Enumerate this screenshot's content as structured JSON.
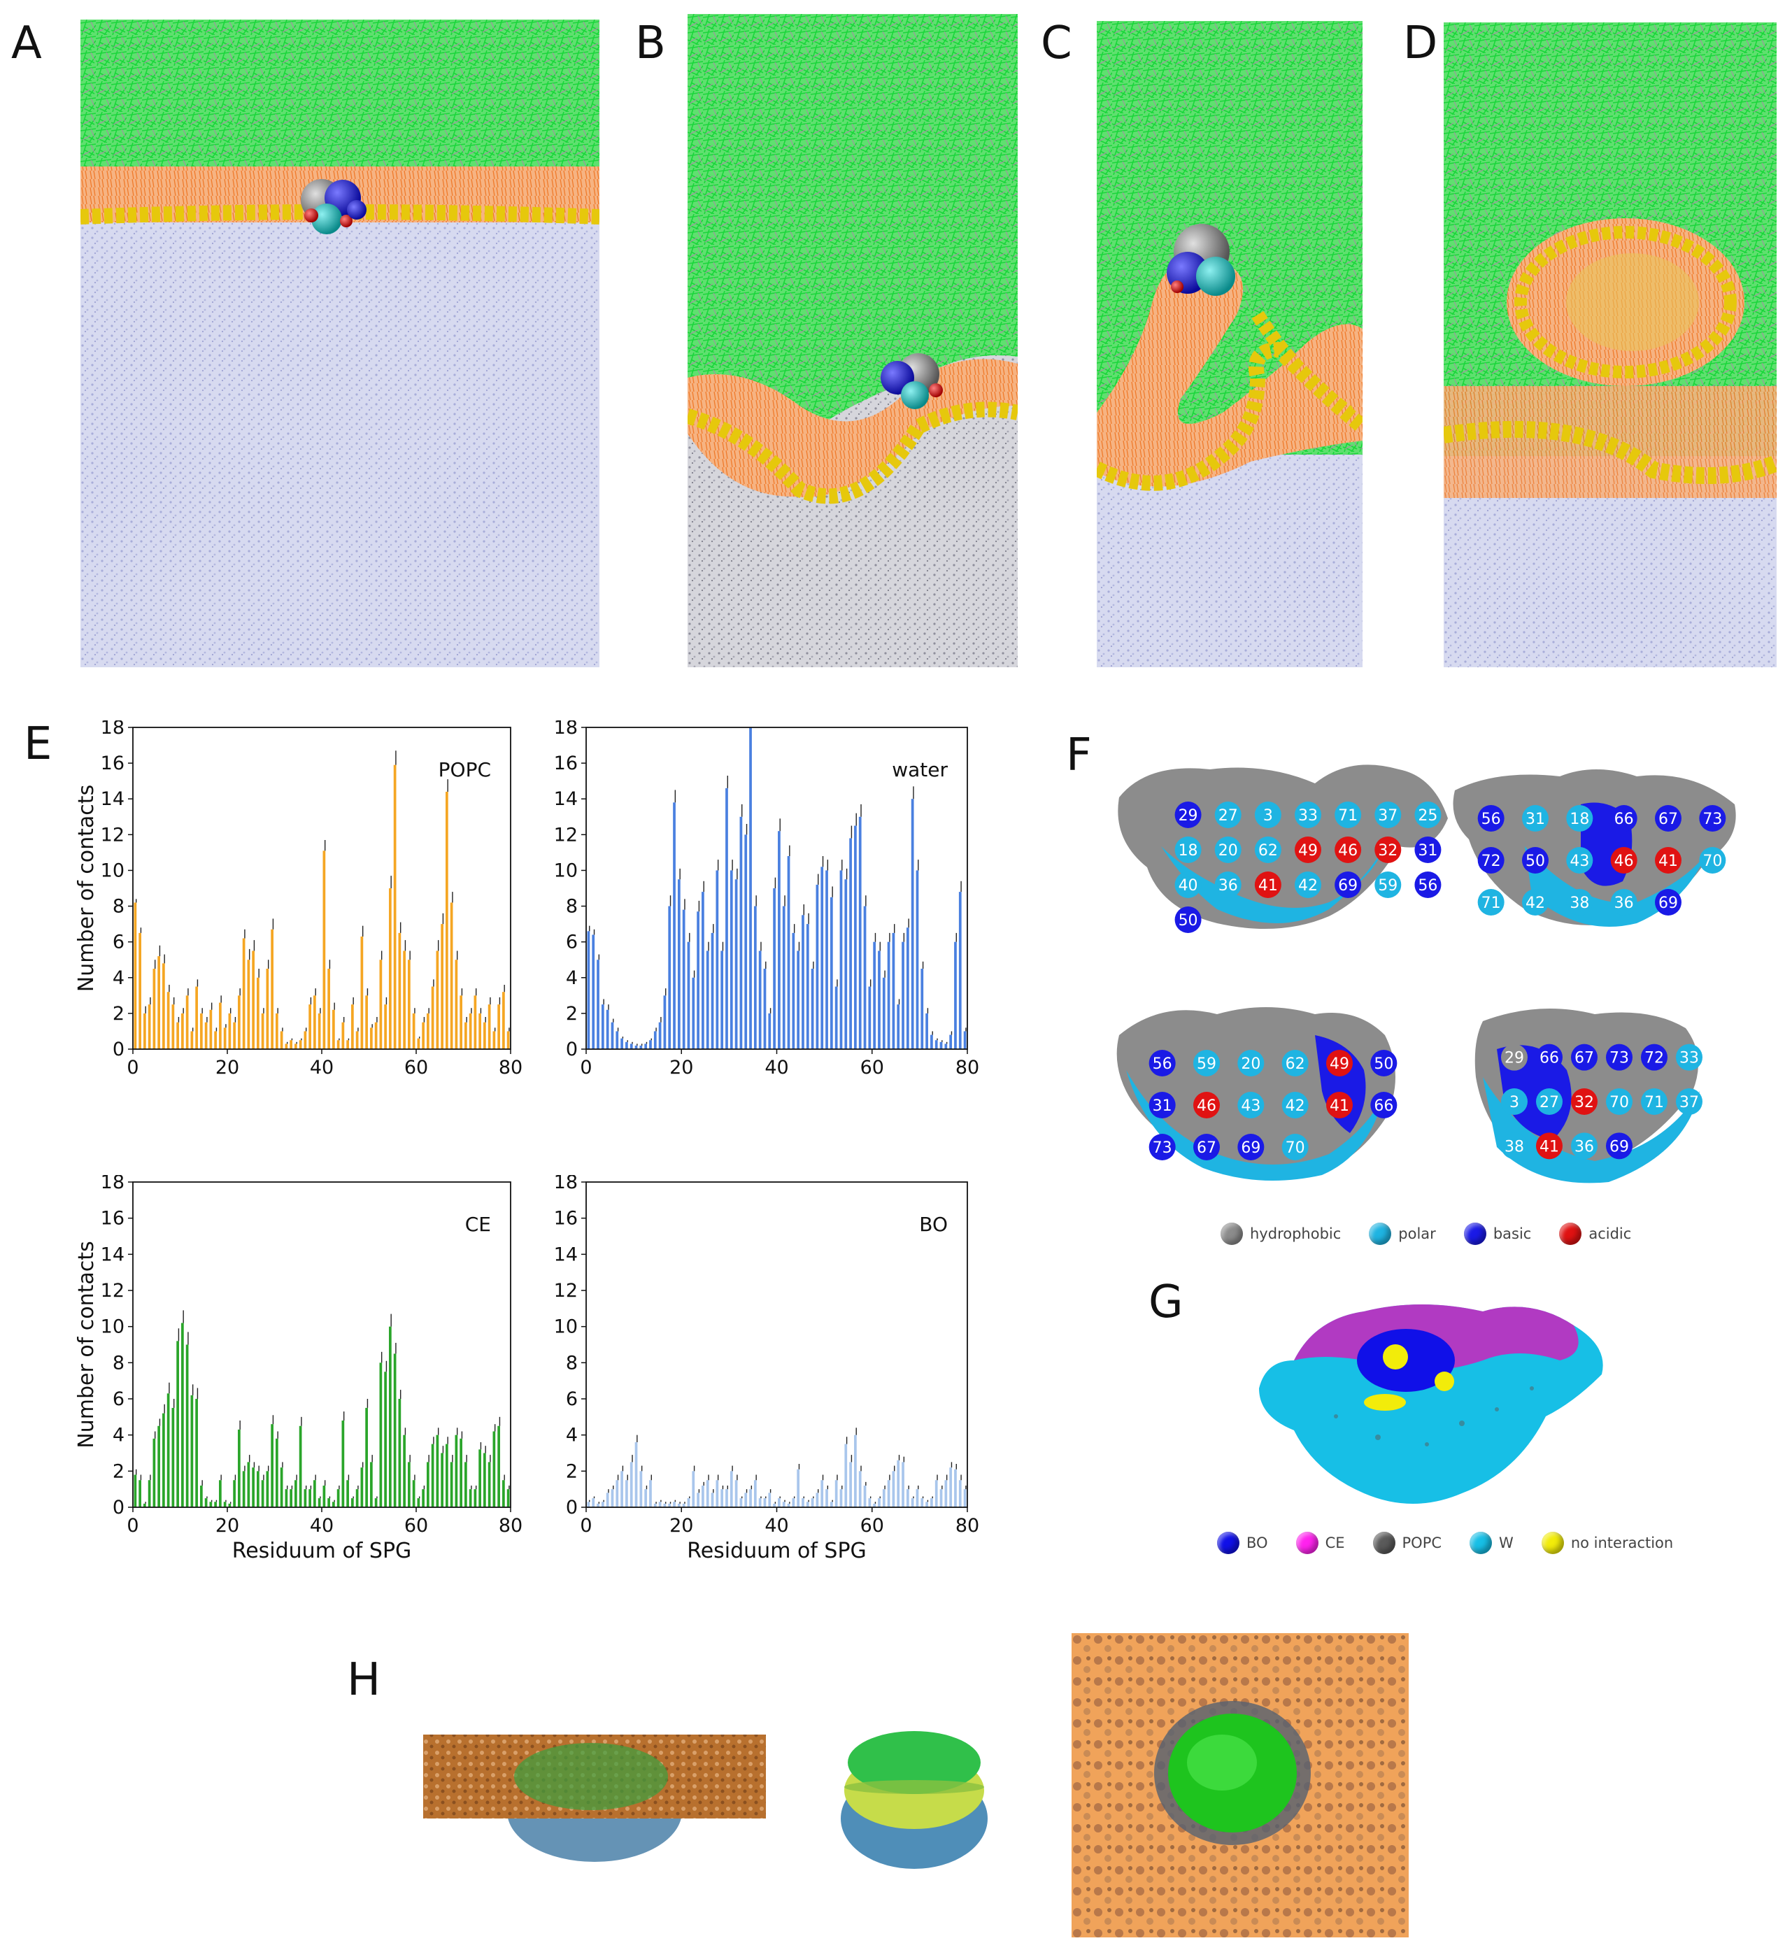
{
  "panels": {
    "A": "A",
    "B": "B",
    "C": "C",
    "D": "D",
    "E": "E",
    "F": "F",
    "G": "G",
    "H": "H"
  },
  "colors": {
    "lipid_green": "#22dd44",
    "popc_orange": "#f59a4e",
    "headgroup_yellow": "#f0d814",
    "water_lavender": "#c9cde9",
    "popc_bar": "#f5a623",
    "water_bar": "#4a80e0",
    "ce_bar": "#2aa52a",
    "bo_bar": "#a9c6ec",
    "hydrophobic": "#8c8c8c",
    "polar": "#1fb4e2",
    "basic": "#1a1ae6",
    "acidic": "#e01212",
    "BO": "#1010e8",
    "CE": "#ff22ee",
    "POPC": "#5a5a5a",
    "W": "#17bfe6",
    "no_interaction": "#f2ec0a"
  },
  "chart_data": [
    {
      "type": "bar",
      "title": "POPC",
      "xlabel": "",
      "ylabel": "Number of contacts",
      "xlim": [
        0,
        80
      ],
      "ylim": [
        0,
        18
      ],
      "xticks": [
        "0",
        "20",
        "40",
        "60",
        "80"
      ],
      "yticks": [
        "0",
        "2",
        "4",
        "6",
        "8",
        "10",
        "12",
        "14",
        "16",
        "18"
      ],
      "values": [
        8.2,
        6.5,
        2.0,
        2.5,
        4.5,
        5.2,
        4.8,
        3.2,
        2.5,
        1.5,
        2.0,
        3.0,
        1.0,
        3.5,
        2.0,
        1.5,
        2.2,
        1.0,
        2.6,
        1.2,
        2.0,
        1.5,
        3.0,
        6.2,
        5.0,
        5.5,
        4.0,
        2.0,
        4.5,
        6.7,
        2.0,
        1.0,
        0.3,
        0.5,
        0.3,
        0.5,
        1.0,
        2.5,
        3.0,
        2.0,
        11.1,
        4.5,
        2.2,
        0.5,
        1.5,
        0.5,
        2.5,
        1.0,
        6.3,
        3.0,
        1.2,
        1.5,
        5.0,
        2.5,
        9.0,
        15.9,
        6.5,
        5.5,
        5.0,
        2.0,
        0.6,
        1.5,
        2.0,
        3.5,
        5.5,
        7.0,
        14.4,
        8.2,
        5.0,
        3.0,
        1.5,
        2.0,
        3.0,
        2.0,
        1.5,
        2.5,
        1.0,
        2.5,
        3.2,
        1.0
      ],
      "errors": [
        0.2,
        0.3,
        0.4,
        0.4,
        0.5,
        0.6,
        0.5,
        0.4,
        0.4,
        0.3,
        0.3,
        0.4,
        0.2,
        0.4,
        0.3,
        0.3,
        0.4,
        0.2,
        0.4,
        0.2,
        0.3,
        0.3,
        0.4,
        0.5,
        0.6,
        0.6,
        0.5,
        0.3,
        0.5,
        0.6,
        0.3,
        0.2,
        0.1,
        0.1,
        0.1,
        0.1,
        0.2,
        0.4,
        0.4,
        0.3,
        0.6,
        0.5,
        0.4,
        0.1,
        0.3,
        0.1,
        0.4,
        0.2,
        0.6,
        0.4,
        0.2,
        0.3,
        0.5,
        0.4,
        0.7,
        0.8,
        0.6,
        0.6,
        0.5,
        0.3,
        0.1,
        0.3,
        0.3,
        0.4,
        0.6,
        0.6,
        0.7,
        0.6,
        0.5,
        0.4,
        0.3,
        0.3,
        0.4,
        0.3,
        0.3,
        0.4,
        0.2,
        0.4,
        0.4,
        0.2
      ]
    },
    {
      "type": "bar",
      "title": "water",
      "xlabel": "",
      "ylabel": "",
      "xlim": [
        0,
        80
      ],
      "ylim": [
        0,
        18
      ],
      "xticks": [
        "0",
        "20",
        "40",
        "60",
        "80"
      ],
      "yticks": [
        "0",
        "2",
        "4",
        "6",
        "8",
        "10",
        "12",
        "14",
        "16",
        "18"
      ],
      "values": [
        6.6,
        6.4,
        5.0,
        2.5,
        2.2,
        1.5,
        1.0,
        0.6,
        0.4,
        0.3,
        0.2,
        0.2,
        0.3,
        0.5,
        1.0,
        1.5,
        3.0,
        8.0,
        13.8,
        9.5,
        7.8,
        6.0,
        4.0,
        7.7,
        8.8,
        5.5,
        6.5,
        10.0,
        5.5,
        14.6,
        10.0,
        9.5,
        13.0,
        12.0,
        18.0,
        8.0,
        5.5,
        4.5,
        2.0,
        9.0,
        12.2,
        8.0,
        10.8,
        6.5,
        5.5,
        7.5,
        7.0,
        4.5,
        9.2,
        10.2,
        10.0,
        8.5,
        3.5,
        10.0,
        9.5,
        11.8,
        12.5,
        13.0,
        8.0,
        3.5,
        6.0,
        5.5,
        4.0,
        6.0,
        6.5,
        2.5,
        6.0,
        6.8,
        14.0,
        10.0,
        4.5,
        2.0,
        0.8,
        0.5,
        0.4,
        0.3,
        0.8,
        6.0,
        8.8,
        1.0
      ],
      "errors": [
        0.3,
        0.3,
        0.3,
        0.3,
        0.3,
        0.2,
        0.2,
        0.1,
        0.1,
        0.1,
        0.1,
        0.1,
        0.1,
        0.1,
        0.2,
        0.3,
        0.4,
        0.6,
        0.7,
        0.6,
        0.6,
        0.5,
        0.4,
        0.6,
        0.6,
        0.5,
        0.5,
        0.6,
        0.5,
        0.7,
        0.6,
        0.6,
        0.7,
        0.6,
        0.8,
        0.6,
        0.5,
        0.4,
        0.3,
        0.6,
        0.7,
        0.6,
        0.6,
        0.5,
        0.5,
        0.6,
        0.6,
        0.4,
        0.6,
        0.6,
        0.6,
        0.6,
        0.4,
        0.6,
        0.6,
        0.7,
        0.7,
        0.7,
        0.6,
        0.4,
        0.5,
        0.5,
        0.4,
        0.5,
        0.5,
        0.3,
        0.5,
        0.5,
        0.7,
        0.6,
        0.4,
        0.3,
        0.2,
        0.1,
        0.1,
        0.1,
        0.2,
        0.5,
        0.6,
        0.2
      ]
    },
    {
      "type": "bar",
      "title": "CE",
      "xlabel": "Residuum of SPG",
      "ylabel": "Number of contacts",
      "xlim": [
        0,
        80
      ],
      "ylim": [
        0,
        18
      ],
      "xticks": [
        "0",
        "20",
        "40",
        "60",
        "80"
      ],
      "yticks": [
        "0",
        "2",
        "4",
        "6",
        "8",
        "10",
        "12",
        "14",
        "16",
        "18"
      ],
      "values": [
        1.8,
        1.5,
        0.2,
        1.5,
        3.8,
        4.5,
        5.2,
        6.3,
        5.5,
        9.2,
        10.2,
        9.0,
        6.2,
        6.0,
        1.2,
        0.5,
        0.3,
        0.3,
        1.5,
        0.3,
        0.2,
        1.5,
        4.3,
        2.0,
        2.5,
        2.2,
        2.0,
        1.5,
        2.0,
        4.6,
        3.8,
        2.2,
        1.0,
        1.0,
        1.5,
        4.5,
        1.0,
        1.0,
        1.5,
        0.5,
        1.2,
        0.5,
        0.3,
        1.0,
        4.8,
        1.5,
        0.5,
        1.0,
        2.2,
        5.5,
        2.5,
        0.5,
        8.0,
        7.5,
        10.0,
        8.5,
        6.0,
        4.0,
        2.5,
        1.5,
        0.5,
        1.0,
        2.5,
        3.5,
        4.0,
        3.0,
        3.5,
        2.5,
        4.0,
        3.8,
        2.5,
        1.0,
        1.0,
        3.2,
        3.0,
        2.5,
        4.2,
        4.5,
        1.5,
        1.0
      ],
      "errors": [
        0.3,
        0.3,
        0.1,
        0.3,
        0.4,
        0.4,
        0.5,
        0.6,
        0.5,
        0.7,
        0.7,
        0.7,
        0.6,
        0.6,
        0.3,
        0.1,
        0.1,
        0.1,
        0.3,
        0.1,
        0.1,
        0.3,
        0.5,
        0.3,
        0.4,
        0.3,
        0.3,
        0.3,
        0.3,
        0.5,
        0.4,
        0.3,
        0.2,
        0.2,
        0.3,
        0.5,
        0.2,
        0.2,
        0.3,
        0.1,
        0.3,
        0.1,
        0.1,
        0.2,
        0.5,
        0.3,
        0.1,
        0.2,
        0.3,
        0.5,
        0.4,
        0.1,
        0.6,
        0.6,
        0.7,
        0.6,
        0.5,
        0.4,
        0.4,
        0.3,
        0.1,
        0.2,
        0.4,
        0.4,
        0.4,
        0.4,
        0.4,
        0.4,
        0.4,
        0.4,
        0.4,
        0.2,
        0.2,
        0.4,
        0.4,
        0.4,
        0.4,
        0.5,
        0.3,
        0.2
      ]
    },
    {
      "type": "bar",
      "title": "BO",
      "xlabel": "Residuum of SPG",
      "ylabel": "",
      "xlim": [
        0,
        80
      ],
      "ylim": [
        0,
        18
      ],
      "xticks": [
        "0",
        "20",
        "40",
        "60",
        "80"
      ],
      "yticks": [
        "0",
        "2",
        "4",
        "6",
        "8",
        "10",
        "12",
        "14",
        "16",
        "18"
      ],
      "values": [
        0.3,
        0.5,
        0.2,
        0.3,
        0.8,
        1.0,
        1.5,
        2.0,
        1.5,
        2.5,
        3.6,
        2.0,
        1.0,
        1.5,
        0.2,
        0.3,
        0.2,
        0.2,
        0.3,
        0.2,
        0.2,
        0.5,
        2.0,
        0.8,
        1.2,
        1.5,
        0.8,
        1.5,
        1.0,
        1.0,
        2.0,
        1.5,
        0.5,
        0.8,
        1.0,
        1.5,
        0.5,
        0.5,
        0.8,
        0.2,
        0.5,
        0.3,
        0.2,
        0.5,
        2.1,
        0.5,
        0.3,
        0.5,
        0.8,
        1.5,
        1.0,
        0.3,
        1.5,
        1.0,
        3.5,
        2.5,
        4.0,
        2.0,
        1.2,
        0.5,
        0.2,
        0.5,
        1.0,
        1.5,
        2.0,
        2.6,
        2.5,
        1.0,
        0.5,
        1.0,
        0.5,
        0.3,
        0.5,
        1.5,
        1.0,
        1.5,
        2.2,
        2.1,
        1.5,
        1.0
      ],
      "errors": [
        0.1,
        0.1,
        0.1,
        0.1,
        0.2,
        0.2,
        0.3,
        0.3,
        0.3,
        0.4,
        0.4,
        0.3,
        0.2,
        0.3,
        0.1,
        0.1,
        0.1,
        0.1,
        0.1,
        0.1,
        0.1,
        0.1,
        0.3,
        0.2,
        0.2,
        0.3,
        0.2,
        0.3,
        0.2,
        0.2,
        0.3,
        0.3,
        0.1,
        0.2,
        0.2,
        0.3,
        0.1,
        0.1,
        0.2,
        0.1,
        0.1,
        0.1,
        0.1,
        0.1,
        0.3,
        0.1,
        0.1,
        0.1,
        0.2,
        0.3,
        0.2,
        0.1,
        0.3,
        0.2,
        0.4,
        0.4,
        0.4,
        0.3,
        0.2,
        0.1,
        0.1,
        0.1,
        0.2,
        0.3,
        0.3,
        0.3,
        0.3,
        0.2,
        0.1,
        0.2,
        0.1,
        0.1,
        0.1,
        0.3,
        0.2,
        0.3,
        0.3,
        0.3,
        0.3,
        0.2
      ]
    }
  ],
  "panel_F": {
    "views": [
      {
        "labels": [
          {
            "t": "29",
            "c": "basic"
          },
          {
            "t": "27",
            "c": "polar"
          },
          {
            "t": "3",
            "c": "polar"
          },
          {
            "t": "33",
            "c": "polar"
          },
          {
            "t": "71",
            "c": "polar"
          },
          {
            "t": "37",
            "c": "polar"
          },
          {
            "t": "25",
            "c": "polar"
          },
          {
            "t": "18",
            "c": "polar"
          },
          {
            "t": "20",
            "c": "polar"
          },
          {
            "t": "62",
            "c": "polar"
          },
          {
            "t": "49",
            "c": "acidic"
          },
          {
            "t": "46",
            "c": "acidic"
          },
          {
            "t": "32",
            "c": "acidic"
          },
          {
            "t": "31",
            "c": "basic"
          },
          {
            "t": "40",
            "c": "polar"
          },
          {
            "t": "36",
            "c": "polar"
          },
          {
            "t": "41",
            "c": "acidic"
          },
          {
            "t": "42",
            "c": "polar"
          },
          {
            "t": "69",
            "c": "basic"
          },
          {
            "t": "59",
            "c": "polar"
          },
          {
            "t": "56",
            "c": "basic"
          },
          {
            "t": "50",
            "c": "basic"
          }
        ]
      },
      {
        "labels": [
          {
            "t": "56",
            "c": "basic"
          },
          {
            "t": "31",
            "c": "polar"
          },
          {
            "t": "18",
            "c": "polar"
          },
          {
            "t": "66",
            "c": "basic"
          },
          {
            "t": "67",
            "c": "basic"
          },
          {
            "t": "73",
            "c": "basic"
          },
          {
            "t": "72",
            "c": "basic"
          },
          {
            "t": "50",
            "c": "basic"
          },
          {
            "t": "43",
            "c": "polar"
          },
          {
            "t": "46",
            "c": "acidic"
          },
          {
            "t": "41",
            "c": "acidic"
          },
          {
            "t": "70",
            "c": "polar"
          },
          {
            "t": "71",
            "c": "polar"
          },
          {
            "t": "42",
            "c": "polar"
          },
          {
            "t": "38",
            "c": "polar"
          },
          {
            "t": "36",
            "c": "polar"
          },
          {
            "t": "69",
            "c": "basic"
          }
        ]
      },
      {
        "labels": [
          {
            "t": "56",
            "c": "basic"
          },
          {
            "t": "59",
            "c": "polar"
          },
          {
            "t": "20",
            "c": "polar"
          },
          {
            "t": "62",
            "c": "polar"
          },
          {
            "t": "49",
            "c": "acidic"
          },
          {
            "t": "50",
            "c": "basic"
          },
          {
            "t": "31",
            "c": "basic"
          },
          {
            "t": "46",
            "c": "acidic"
          },
          {
            "t": "43",
            "c": "polar"
          },
          {
            "t": "42",
            "c": "polar"
          },
          {
            "t": "41",
            "c": "acidic"
          },
          {
            "t": "66",
            "c": "basic"
          },
          {
            "t": "73",
            "c": "basic"
          },
          {
            "t": "67",
            "c": "basic"
          },
          {
            "t": "69",
            "c": "basic"
          },
          {
            "t": "70",
            "c": "polar"
          }
        ]
      },
      {
        "labels": [
          {
            "t": "29",
            "c": "hydrophobic"
          },
          {
            "t": "66",
            "c": "basic"
          },
          {
            "t": "67",
            "c": "basic"
          },
          {
            "t": "73",
            "c": "basic"
          },
          {
            "t": "72",
            "c": "basic"
          },
          {
            "t": "33",
            "c": "polar"
          },
          {
            "t": "3",
            "c": "polar"
          },
          {
            "t": "27",
            "c": "polar"
          },
          {
            "t": "32",
            "c": "acidic"
          },
          {
            "t": "70",
            "c": "polar"
          },
          {
            "t": "71",
            "c": "polar"
          },
          {
            "t": "37",
            "c": "polar"
          },
          {
            "t": "38",
            "c": "polar"
          },
          {
            "t": "41",
            "c": "acidic"
          },
          {
            "t": "36",
            "c": "polar"
          },
          {
            "t": "69",
            "c": "basic"
          }
        ]
      }
    ],
    "legend": [
      {
        "label": "hydrophobic",
        "color": "hydrophobic"
      },
      {
        "label": "polar",
        "color": "polar"
      },
      {
        "label": "basic",
        "color": "basic"
      },
      {
        "label": "acidic",
        "color": "acidic"
      }
    ]
  },
  "panel_G": {
    "legend": [
      {
        "label": "BO",
        "color": "BO"
      },
      {
        "label": "CE",
        "color": "CE"
      },
      {
        "label": "POPC",
        "color": "POPC"
      },
      {
        "label": "W",
        "color": "W"
      },
      {
        "label": "no interaction",
        "color": "no_interaction"
      }
    ]
  }
}
